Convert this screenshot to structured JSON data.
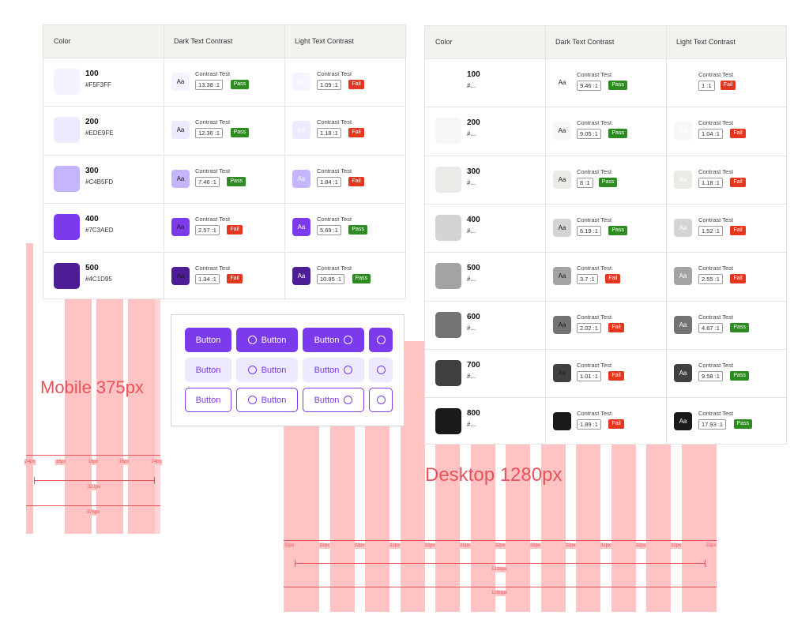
{
  "mobile_grid": {
    "title": "Mobile 375px",
    "margin_label": "24px",
    "gutter_label": "16px",
    "content_label": "327px",
    "total_label": "375px"
  },
  "desktop_grid": {
    "title": "Desktop 1280px",
    "gutter_label": "32px",
    "content_label": "1216px",
    "total_label": "1280px"
  },
  "headers": {
    "color": "Color",
    "dark": "Dark Text Contrast",
    "light": "Light Text Contrast"
  },
  "contrast_test_label": "Contrast Test",
  "aa_label": "Aa",
  "pass_label": "Pass",
  "fail_label": "Fail",
  "colors": {
    "pass": "#2e8b22",
    "fail": "#e5361f",
    "accent": "#7c3aed"
  },
  "purple_table": [
    {
      "shade": "100",
      "hex": "#F5F3FF",
      "dark_ratio": "13.38 :1",
      "dark_pass": true,
      "light_ratio": "1.09 :1",
      "light_pass": false
    },
    {
      "shade": "200",
      "hex": "#EDE9FE",
      "dark_ratio": "12.36 :1",
      "dark_pass": true,
      "light_ratio": "1.18 :1",
      "light_pass": false
    },
    {
      "shade": "300",
      "hex": "#C4B5FD",
      "dark_ratio": "7.46 :1",
      "dark_pass": true,
      "light_ratio": "1.84 :1",
      "light_pass": false
    },
    {
      "shade": "400",
      "hex": "#7C3AED",
      "dark_ratio": "2.57 :1",
      "dark_pass": false,
      "light_ratio": "5.69 :1",
      "light_pass": true
    },
    {
      "shade": "500",
      "hex": "#4C1D95",
      "dark_ratio": "1.34 :1",
      "dark_pass": false,
      "light_ratio": "10.95 :1",
      "light_pass": true
    }
  ],
  "gray_table": [
    {
      "shade": "100",
      "hex": "#...",
      "swatch": "#ffffff",
      "dark_ratio": "9.46 :1",
      "dark_pass": true,
      "light_ratio": "1 :1",
      "light_pass": false
    },
    {
      "shade": "200",
      "hex": "#...",
      "swatch": "#f7f7f6",
      "dark_ratio": "9.05 :1",
      "dark_pass": true,
      "light_ratio": "1.04 :1",
      "light_pass": false
    },
    {
      "shade": "300",
      "hex": "#...",
      "swatch": "#eceae6",
      "dark_ratio": "8 :1",
      "dark_pass": true,
      "light_ratio": "1.18 :1",
      "light_pass": false
    },
    {
      "shade": "400",
      "hex": "#...",
      "swatch": "#d4d4d4",
      "dark_ratio": "6.19 :1",
      "dark_pass": true,
      "light_ratio": "1.52 :1",
      "light_pass": false
    },
    {
      "shade": "500",
      "hex": "#...",
      "swatch": "#a3a3a3",
      "dark_ratio": "3.7 :1",
      "dark_pass": false,
      "light_ratio": "2.55 :1",
      "light_pass": false
    },
    {
      "shade": "600",
      "hex": "#...",
      "swatch": "#737373",
      "dark_ratio": "2.02 :1",
      "dark_pass": false,
      "light_ratio": "4.67 :1",
      "light_pass": true
    },
    {
      "shade": "700",
      "hex": "#...",
      "swatch": "#404040",
      "dark_ratio": "1.01 :1",
      "dark_pass": false,
      "light_ratio": "9.58 :1",
      "light_pass": true
    },
    {
      "shade": "800",
      "hex": "#...",
      "swatch": "#1a1a1a",
      "dark_ratio": "1.89 :1",
      "dark_pass": false,
      "light_ratio": "17.93 :1",
      "light_pass": true
    }
  ],
  "buttons": {
    "label": "Button",
    "rows": [
      "solid",
      "soft",
      "outline"
    ]
  }
}
